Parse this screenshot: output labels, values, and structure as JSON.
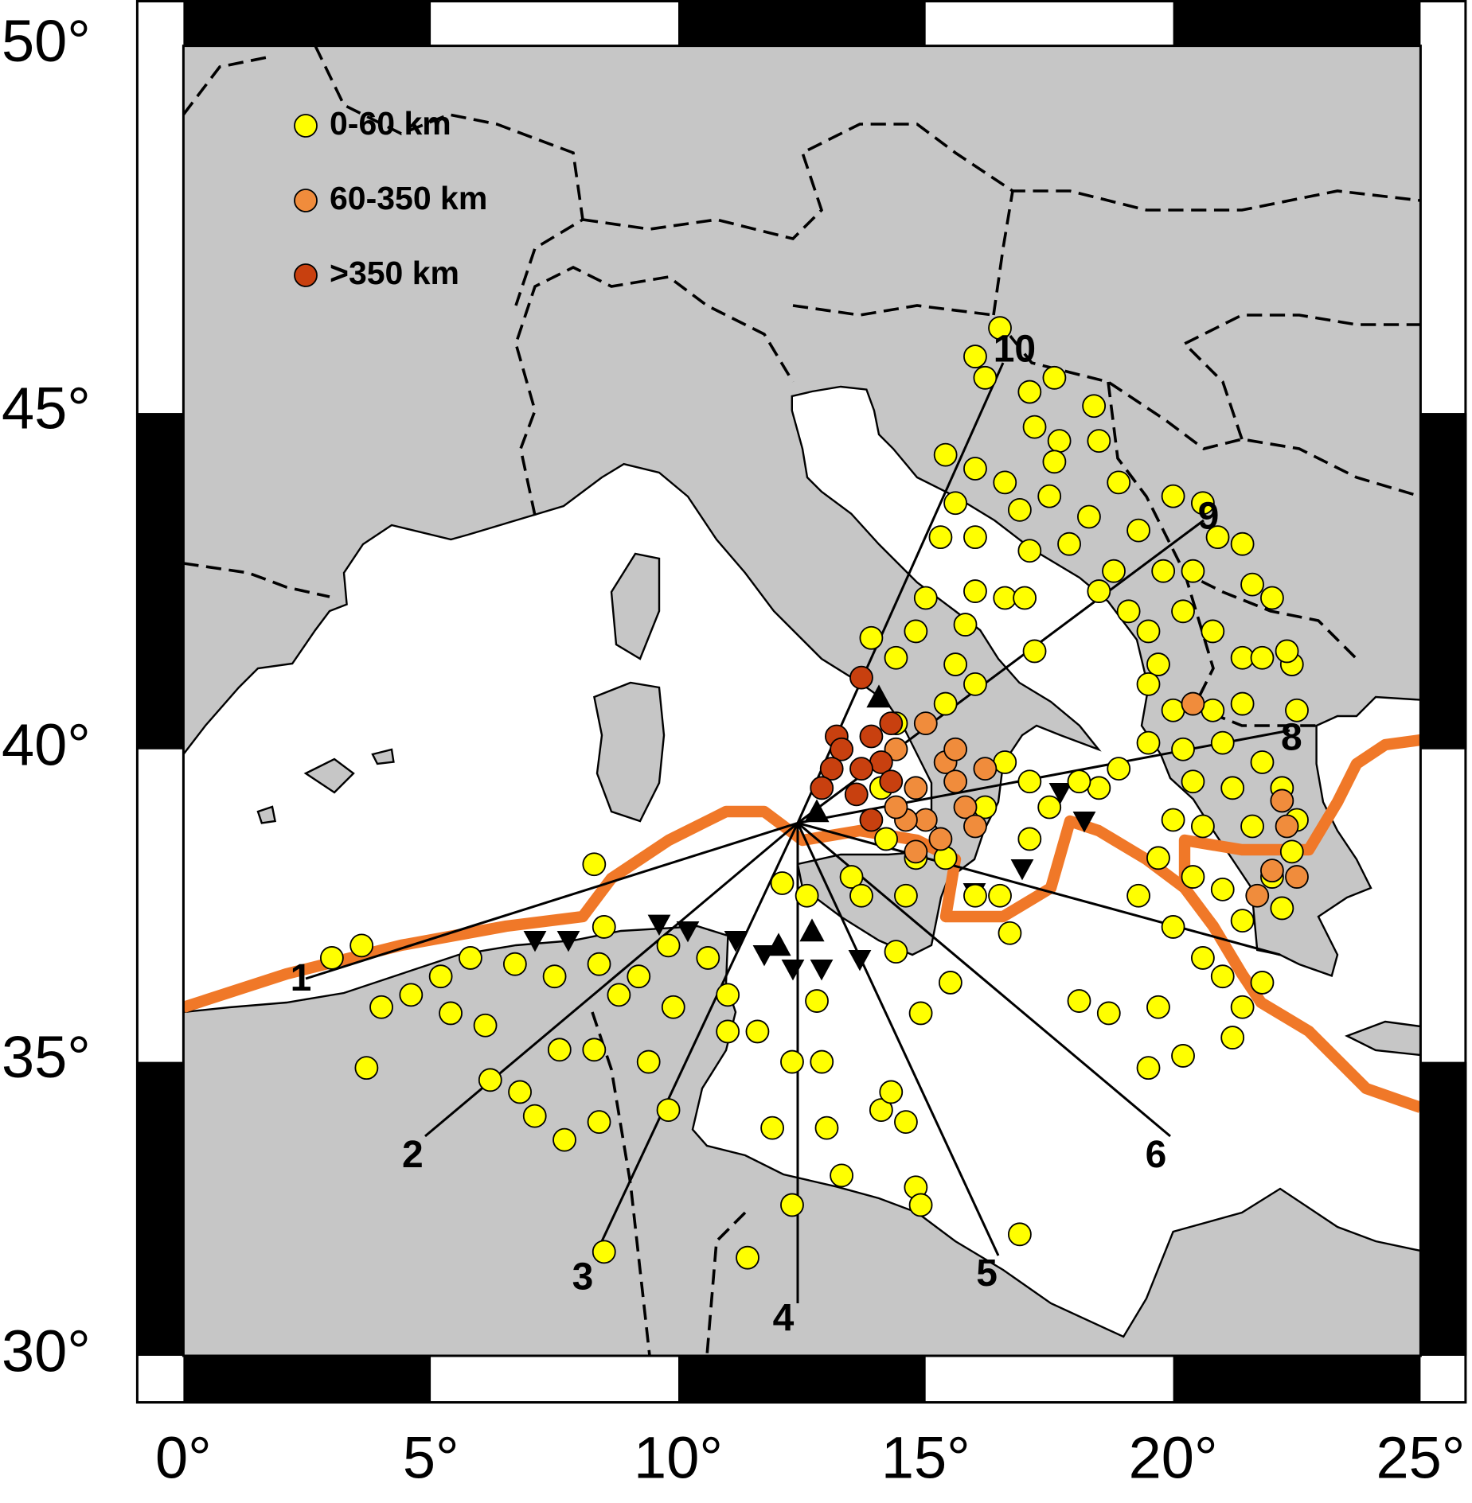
{
  "chart_data": {
    "type": "scatter",
    "xlim": [
      0,
      25
    ],
    "ylim": [
      30,
      50
    ],
    "xticks": [
      {
        "value": 0,
        "label": "0°"
      },
      {
        "value": 5,
        "label": "5°"
      },
      {
        "value": 10,
        "label": "10°"
      },
      {
        "value": 15,
        "label": "15°"
      },
      {
        "value": 20,
        "label": "20°"
      },
      {
        "value": 25,
        "label": "25°"
      }
    ],
    "yticks": [
      {
        "value": 30,
        "label": "30°"
      },
      {
        "value": 35,
        "label": "35°"
      },
      {
        "value": 40,
        "label": "40°"
      },
      {
        "value": 45,
        "label": "45°"
      },
      {
        "value": 50,
        "label": "50°"
      }
    ],
    "projection": "mercator",
    "legend": "top-left",
    "profile_labels": [
      "1",
      "2",
      "3",
      "4",
      "5",
      "6",
      "8",
      "9",
      "10"
    ],
    "series": [
      {
        "name": "0-60 km",
        "color": "#ffff00",
        "x": [
          3.0,
          3.6,
          4.0,
          4.6,
          5.2,
          5.8,
          5.4,
          6.1,
          6.7,
          7.5,
          8.4,
          8.3,
          8.5,
          8.8,
          9.2,
          9.9,
          9.4,
          9.8,
          8.3,
          7.6,
          7.1,
          7.7,
          8.4,
          6.2,
          3.7,
          6.8,
          11.0,
          11.0,
          11.6,
          12.3,
          12.9,
          12.8,
          11.9,
          13.0,
          13.3,
          12.3,
          14.1,
          14.3,
          14.6,
          14.8,
          14.9,
          16.9,
          15.5,
          14.9,
          18.1,
          18.7,
          19.7,
          19.5,
          20.2,
          21.2,
          11.4,
          8.5,
          9.8,
          10.6,
          12.1,
          12.6,
          13.5,
          14.4,
          16.5,
          16.7,
          16.5,
          16.0,
          16.2,
          17.1,
          17.6,
          18.4,
          17.2,
          17.7,
          18.5,
          17.6,
          15.4,
          16.0,
          16.6,
          15.6,
          16.9,
          17.5,
          18.9,
          18.3,
          19.3,
          17.1,
          17.9,
          18.8,
          15.3,
          16.0,
          15.0,
          16.0,
          16.6,
          17.0,
          15.8,
          14.8,
          14.4,
          13.9,
          17.2,
          18.5,
          19.1,
          19.5,
          19.7,
          20.0,
          20.6,
          20.9,
          21.4,
          21.6,
          22.0,
          20.8,
          21.4,
          20.4,
          19.8,
          20.2,
          19.5,
          20.0,
          20.8,
          21.4,
          22.4,
          22.3,
          21.8,
          22.5,
          19.5,
          20.2,
          21.0,
          21.8,
          20.4,
          21.2,
          22.2,
          20.0,
          20.6,
          21.6,
          22.5,
          19.7,
          20.4,
          21.0,
          22.0,
          22.4,
          21.4,
          22.2,
          20.0,
          20.6,
          21.0,
          21.8,
          21.4,
          19.3,
          15.4,
          16.0,
          15.6,
          16.6,
          17.1,
          17.5,
          17.1,
          16.2,
          14.8,
          15.4,
          14.1,
          14.4,
          18.5,
          18.1,
          18.9,
          13.7,
          16.0,
          14.2,
          14.6
        ],
        "y": [
          36.7,
          36.9,
          35.9,
          36.1,
          36.4,
          36.7,
          35.8,
          35.6,
          36.6,
          36.4,
          36.6,
          38.2,
          37.2,
          36.1,
          36.4,
          35.9,
          35.0,
          34.2,
          35.2,
          35.2,
          34.1,
          33.7,
          34.0,
          34.7,
          34.9,
          34.5,
          36.1,
          35.5,
          35.5,
          35.0,
          35.0,
          36.0,
          33.9,
          33.9,
          33.1,
          32.6,
          34.2,
          34.5,
          34.0,
          32.9,
          32.6,
          32.1,
          36.3,
          35.8,
          36.0,
          35.8,
          35.9,
          34.9,
          35.1,
          35.4,
          31.7,
          31.8,
          36.9,
          36.7,
          37.9,
          37.7,
          38.0,
          36.8,
          37.7,
          37.1,
          46.2,
          45.8,
          45.5,
          45.3,
          45.5,
          45.1,
          44.8,
          44.6,
          44.6,
          44.3,
          44.4,
          44.2,
          44.0,
          43.7,
          43.6,
          43.8,
          44.0,
          43.5,
          43.3,
          43.0,
          43.1,
          42.7,
          43.2,
          43.2,
          42.3,
          42.4,
          42.3,
          42.3,
          41.9,
          41.8,
          41.4,
          41.7,
          41.5,
          42.4,
          42.1,
          41.8,
          41.3,
          43.8,
          43.7,
          43.2,
          43.1,
          42.5,
          42.3,
          41.8,
          41.4,
          42.7,
          42.7,
          42.1,
          41.0,
          40.6,
          40.6,
          40.7,
          41.3,
          41.5,
          41.4,
          40.6,
          40.1,
          40.0,
          40.1,
          39.8,
          39.5,
          39.4,
          39.4,
          38.9,
          38.8,
          38.8,
          38.9,
          38.3,
          38.0,
          37.8,
          38.0,
          38.4,
          37.3,
          37.5,
          37.2,
          36.7,
          36.4,
          36.3,
          35.9,
          37.7,
          40.7,
          41.0,
          41.3,
          39.8,
          39.5,
          39.1,
          38.6,
          39.1,
          38.3,
          38.3,
          39.4,
          40.4,
          39.4,
          39.5,
          39.7,
          37.7,
          37.7,
          38.6,
          37.7
        ]
      },
      {
        "name": "60-350 km",
        "color": "#f08c3c",
        "x": [
          20.4,
          15.0,
          14.4,
          15.4,
          15.6,
          14.8,
          15.8,
          15.0,
          16.0,
          14.6,
          15.3,
          22.2,
          22.3,
          22.0,
          22.5,
          21.7,
          14.8,
          15.6,
          16.2,
          14.4
        ],
        "y": [
          40.7,
          40.4,
          40.0,
          39.8,
          39.5,
          39.4,
          39.1,
          38.9,
          38.8,
          38.9,
          38.6,
          39.2,
          38.8,
          38.1,
          38.0,
          37.7,
          38.4,
          40.0,
          39.7,
          39.1
        ]
      },
      {
        "name": ">350 km",
        "color": "#c8400f",
        "x": [
          13.7,
          13.2,
          13.3,
          13.9,
          14.3,
          14.1,
          13.7,
          14.3,
          13.1,
          13.6,
          13.9,
          12.9
        ],
        "y": [
          41.1,
          40.2,
          40.0,
          40.2,
          40.4,
          39.8,
          39.7,
          39.5,
          39.7,
          39.3,
          38.9,
          39.4
        ]
      }
    ]
  }
}
